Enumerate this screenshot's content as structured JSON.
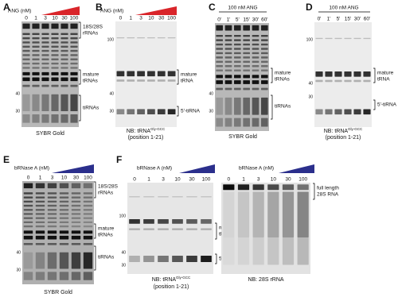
{
  "panels": [
    {
      "label": "A",
      "treatment": "ANG (nM)",
      "lanes": [
        "0",
        "1",
        "3",
        "10",
        "30",
        "100"
      ],
      "markers": [
        "40",
        "30"
      ],
      "annotations": [
        [
          "18S/28S",
          "rRNAs"
        ],
        [
          "mature",
          "tRNAs"
        ],
        [
          "tiRNAs"
        ]
      ],
      "stain": "SYBR Gold"
    },
    {
      "label": "B",
      "treatment": "ANG (nM)",
      "lanes": [
        "0",
        "1",
        "3",
        "10",
        "30",
        "100"
      ],
      "markers": [
        "100",
        "40",
        "30"
      ],
      "annotations": [
        [
          "mature",
          "tRNA"
        ],
        [
          "5'-tiRNA"
        ]
      ],
      "probe": {
        "prefix": "NB: tRNA",
        "superscript": "Gly-GCC",
        "position": "(position 1-21)"
      }
    },
    {
      "label": "C",
      "treatment": "100 nM ANG",
      "lanes": [
        "0'",
        "1'",
        "5'",
        "15'",
        "30'",
        "60'"
      ],
      "markers": [
        "40",
        "30"
      ],
      "annotations": [
        [
          "mature",
          "tRNAs"
        ],
        [
          "tiRNAs"
        ]
      ],
      "stain": "SYBR Gold"
    },
    {
      "label": "D",
      "treatment": "100 nM ANG",
      "lanes": [
        "0'",
        "1'",
        "5'",
        "15'",
        "30'",
        "60'"
      ],
      "markers": [
        "100",
        "40",
        "30"
      ],
      "annotations": [
        [
          "mature",
          "tRNA"
        ],
        [
          "5'-tiRNA"
        ]
      ],
      "probe": {
        "prefix": "NB: tRNA",
        "superscript": "Gly-GCC",
        "position": "(position 1-21)"
      }
    },
    {
      "label": "E",
      "treatment": "bRNase A (nM)",
      "lanes": [
        "0",
        "1",
        "3",
        "10",
        "30",
        "100"
      ],
      "markers": [
        "40",
        "30"
      ],
      "annotations": [
        [
          "18S/28S",
          "rRNAs"
        ],
        [
          "mature",
          "tRNAs"
        ],
        [
          "tiRNAs"
        ]
      ],
      "stain": "SYBR Gold"
    },
    {
      "label": "F",
      "treatment": "bRNase A (nM)",
      "lanes": [
        "0",
        "1",
        "3",
        "10",
        "30",
        "100"
      ],
      "markers": [
        "100",
        "40",
        "30"
      ],
      "annotations": [
        [
          "mature",
          "tRNA"
        ],
        [
          "5'-tiRNA"
        ]
      ],
      "probe": {
        "prefix": "NB: tRNA",
        "superscript": "Gly-GCC",
        "position": "(position 1-21)"
      }
    },
    {
      "treatment": "bRNase A (nM)",
      "lanes": [
        "0",
        "1",
        "3",
        "10",
        "30",
        "100"
      ],
      "markers": [],
      "annotations": [
        [
          "full length",
          "28S RNA"
        ]
      ],
      "stain": "NB: 28S rRNA"
    }
  ]
}
